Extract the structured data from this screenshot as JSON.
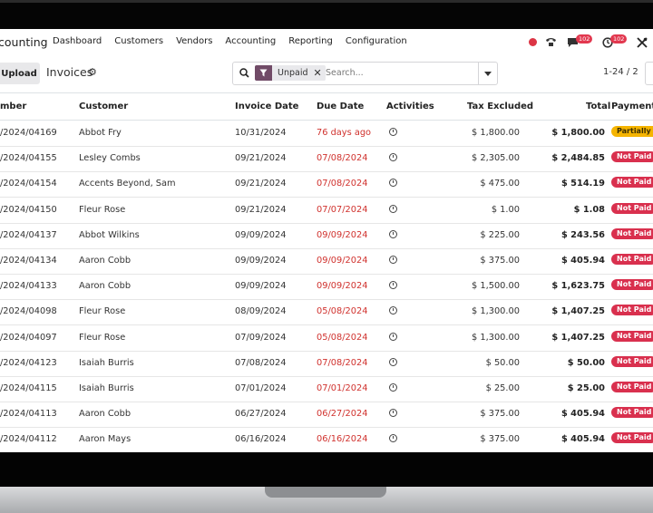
{
  "navbar": {
    "app_name": "counting",
    "menu": [
      "Dashboard",
      "Customers",
      "Vendors",
      "Accounting",
      "Reporting",
      "Configuration"
    ],
    "chat_badge": "102",
    "activity_badge": "102"
  },
  "control": {
    "upload_label": "Upload",
    "breadcrumb": "Invoices",
    "facet_label": "Unpaid",
    "search_placeholder": "Search...",
    "pager": "1-24 / 2"
  },
  "columns": {
    "number": "mber",
    "customer": "Customer",
    "invoice_date": "Invoice Date",
    "due_date": "Due Date",
    "activities": "Activities",
    "tax_excluded": "Tax Excluded",
    "total": "Total",
    "payment": "Payment"
  },
  "rows": [
    {
      "number": "/2024/04169",
      "customer": "Abbot Fry",
      "invoice_date": "10/31/2024",
      "due": "76 days ago",
      "tax": "$ 1,800.00",
      "total": "$ 1,800.00",
      "status": "Partially Pa"
    },
    {
      "number": "/2024/04155",
      "customer": "Lesley Combs",
      "invoice_date": "09/21/2024",
      "due": "07/08/2024",
      "tax": "$ 2,305.00",
      "total": "$ 2,484.85",
      "status": "Not Paid"
    },
    {
      "number": "/2024/04154",
      "customer": "Accents Beyond, Sam",
      "invoice_date": "09/21/2024",
      "due": "07/08/2024",
      "tax": "$ 475.00",
      "total": "$ 514.19",
      "status": "Not Paid"
    },
    {
      "number": "/2024/04150",
      "customer": "Fleur Rose",
      "invoice_date": "09/21/2024",
      "due": "07/07/2024",
      "tax": "$ 1.00",
      "total": "$ 1.08",
      "status": "Not Paid"
    },
    {
      "number": "/2024/04137",
      "customer": "Abbot Wilkins",
      "invoice_date": "09/09/2024",
      "due": "09/09/2024",
      "tax": "$ 225.00",
      "total": "$ 243.56",
      "status": "Not Paid"
    },
    {
      "number": "/2024/04134",
      "customer": "Aaron Cobb",
      "invoice_date": "09/09/2024",
      "due": "09/09/2024",
      "tax": "$ 375.00",
      "total": "$ 405.94",
      "status": "Not Paid"
    },
    {
      "number": "/2024/04133",
      "customer": "Aaron Cobb",
      "invoice_date": "09/09/2024",
      "due": "09/09/2024",
      "tax": "$ 1,500.00",
      "total": "$ 1,623.75",
      "status": "Not Paid"
    },
    {
      "number": "/2024/04098",
      "customer": "Fleur Rose",
      "invoice_date": "08/09/2024",
      "due": "05/08/2024",
      "tax": "$ 1,300.00",
      "total": "$ 1,407.25",
      "status": "Not Paid"
    },
    {
      "number": "/2024/04097",
      "customer": "Fleur Rose",
      "invoice_date": "07/09/2024",
      "due": "05/08/2024",
      "tax": "$ 1,300.00",
      "total": "$ 1,407.25",
      "status": "Not Paid"
    },
    {
      "number": "/2024/04123",
      "customer": "Isaiah Burris",
      "invoice_date": "07/08/2024",
      "due": "07/08/2024",
      "tax": "$ 50.00",
      "total": "$ 50.00",
      "status": "Not Paid"
    },
    {
      "number": "/2024/04115",
      "customer": "Isaiah Burris",
      "invoice_date": "07/01/2024",
      "due": "07/01/2024",
      "tax": "$ 25.00",
      "total": "$ 25.00",
      "status": "Not Paid"
    },
    {
      "number": "/2024/04113",
      "customer": "Aaron Cobb",
      "invoice_date": "06/27/2024",
      "due": "06/27/2024",
      "tax": "$ 375.00",
      "total": "$ 405.94",
      "status": "Not Paid"
    },
    {
      "number": "/2024/04112",
      "customer": "Aaron Mays",
      "invoice_date": "06/16/2024",
      "due": "06/16/2024",
      "tax": "$ 375.00",
      "total": "$ 405.94",
      "status": "Not Paid"
    }
  ],
  "colors": {
    "brand": "#714B67",
    "due_red": "#d0312d",
    "not_paid": "#d9304e",
    "partial": "#f5b400"
  }
}
